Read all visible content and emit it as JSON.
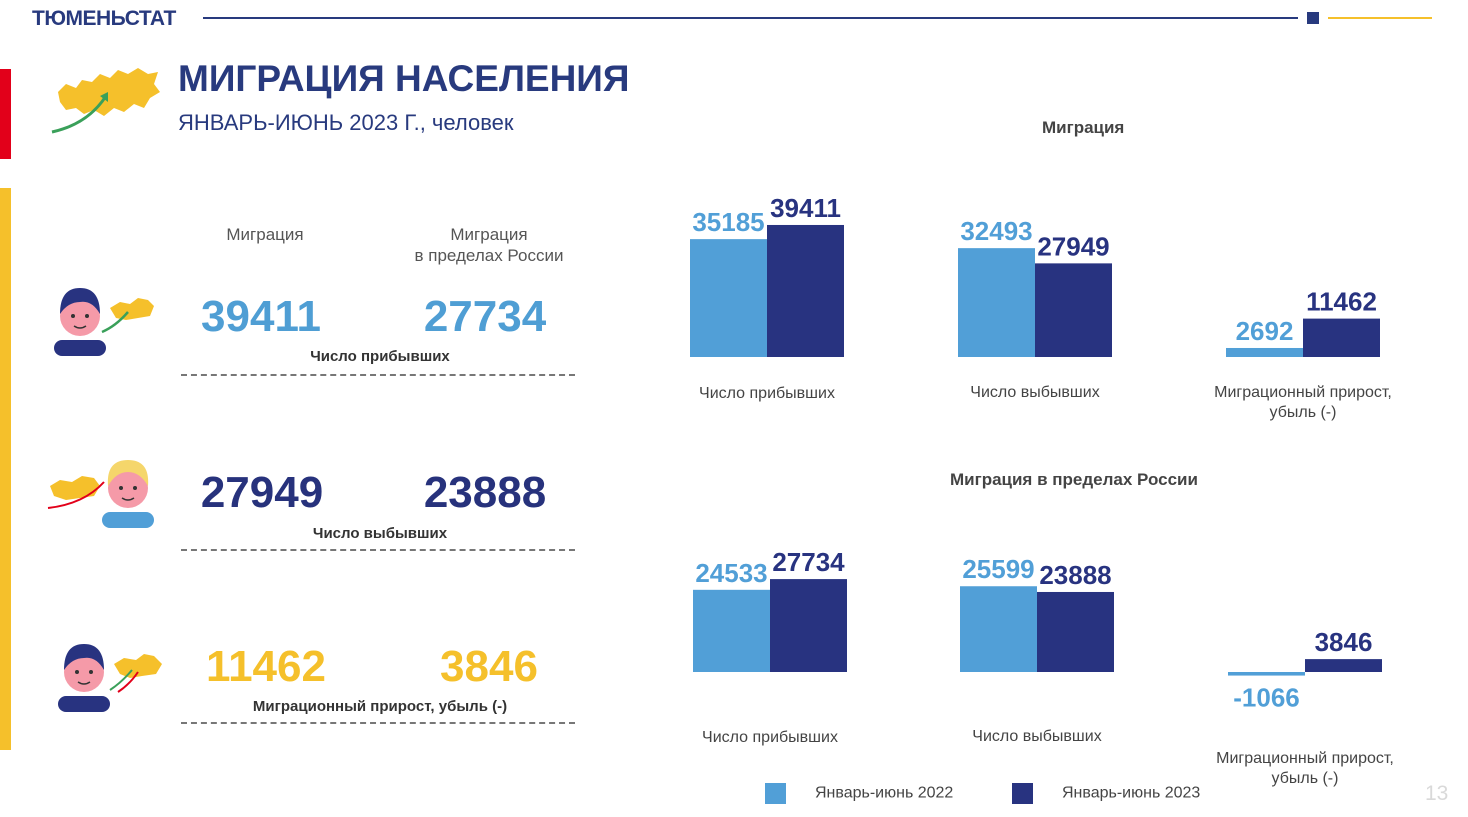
{
  "header": {
    "org": "ТЮМЕНЬСТАТ"
  },
  "title": "МИГРАЦИЯ НАСЕЛЕНИЯ",
  "subtitle": "ЯНВАРЬ-ИЮНЬ 2023 Г., человек",
  "summary": {
    "col1_header": "Миграция",
    "col2_header": "Миграция\nв пределах России",
    "rows": [
      {
        "caption": "Число прибывших",
        "v1": "39411",
        "v2": "27734",
        "color": "#4f9ed4"
      },
      {
        "caption": "Число выбывших",
        "v1": "27949",
        "v2": "23888",
        "color": "#27327c"
      },
      {
        "caption": "Миграционный прирост, убыль (-)",
        "v1": "11462",
        "v2": "3846",
        "color": "#f5c02b"
      }
    ]
  },
  "colors": {
    "y2022": "#519fd7",
    "y2023": "#283380",
    "accent_red": "#e2001a",
    "accent_yellow": "#f5c02b"
  },
  "chart_data": [
    {
      "type": "bar",
      "title": "Миграция",
      "categories": [
        "Число прибывших",
        "Число выбывших",
        "Миграционный прирост, убыль (-)"
      ],
      "series": [
        {
          "name": "Январь-июнь 2022",
          "values": [
            35185,
            32493,
            2692
          ]
        },
        {
          "name": "Январь-июнь 2023",
          "values": [
            39411,
            27949,
            11462
          ]
        }
      ]
    },
    {
      "type": "bar",
      "title": "Миграция в пределах России",
      "categories": [
        "Число прибывших",
        "Число выбывших",
        "Миграционный прирост, убыль (-)"
      ],
      "series": [
        {
          "name": "Январь-июнь 2022",
          "values": [
            24533,
            25599,
            -1066
          ]
        },
        {
          "name": "Январь-июнь 2023",
          "values": [
            27734,
            23888,
            3846
          ]
        }
      ]
    }
  ],
  "legend": [
    "Январь-июнь 2022",
    "Январь-июнь 2023"
  ],
  "page_number": "13"
}
